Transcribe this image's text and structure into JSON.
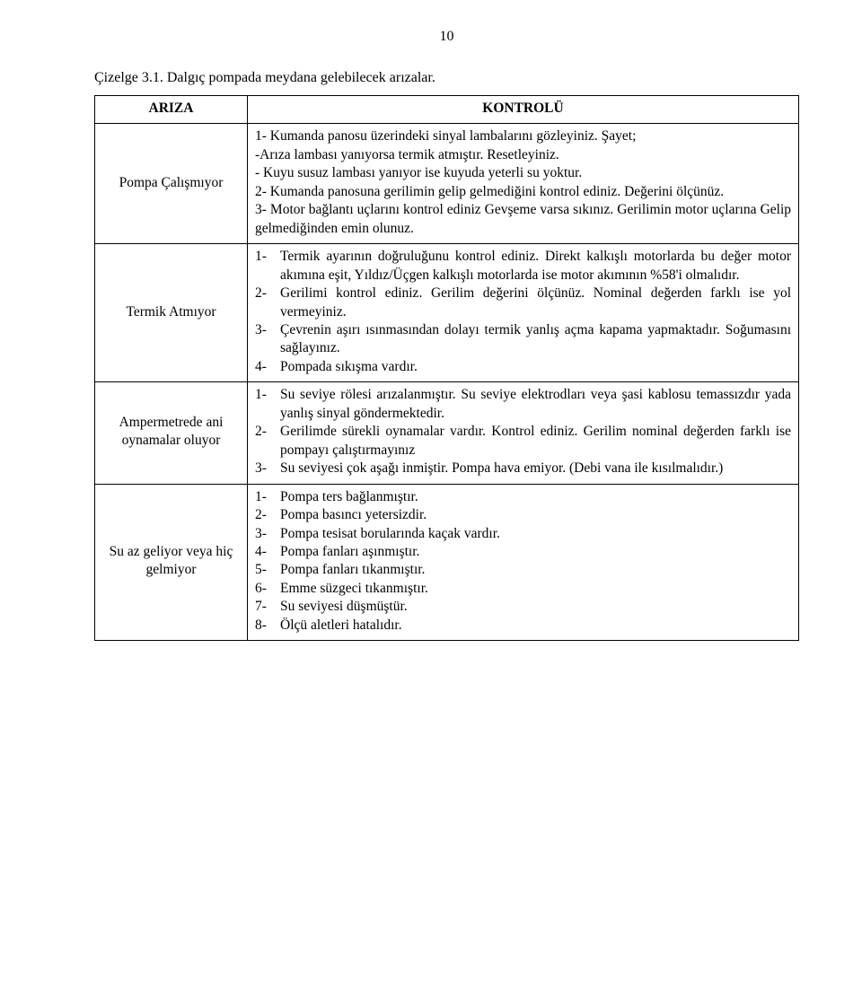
{
  "page_number": "10",
  "caption": "Çizelge 3.1. Dalgıç pompada meydana gelebilecek arızalar.",
  "headers": {
    "col1": "ARIZA",
    "col2": "KONTROLÜ"
  },
  "rows": [
    {
      "label": "Pompa Çalışmıyor",
      "text": "1- Kumanda panosu üzerindeki sinyal lambalarını gözleyiniz. Şayet;\n-Arıza lambası yanıyorsa termik atmıştır. Resetleyiniz.\n- Kuyu susuz lambası yanıyor ise kuyuda yeterli su yoktur.\n2- Kumanda panosuna gerilimin gelip gelmediğini kontrol ediniz. Değerini ölçünüz.\n3- Motor bağlantı uçlarını kontrol ediniz Gevşeme  varsa sıkınız. Gerilimin motor uçlarına Gelip gelmediğinden emin olunuz."
    },
    {
      "label": "Termik Atmıyor",
      "items": [
        "Termik ayarının doğruluğunu kontrol ediniz. Direkt kalkışlı motorlarda bu değer motor akımına eşit, Yıldız/Üçgen kalkışlı motorlarda ise motor akımının %58'i olmalıdır.",
        "Gerilimi kontrol ediniz. Gerilim değerini ölçünüz. Nominal değerden farklı ise yol vermeyiniz.",
        "Çevrenin aşırı ısınmasından  dolayı termik yanlış açma kapama yapmaktadır. Soğumasını sağlayınız.",
        "Pompada sıkışma vardır."
      ]
    },
    {
      "label": "Ampermetrede ani oynamalar oluyor",
      "items": [
        "Su seviye rölesi arızalanmıştır. Su seviye elektrodları veya şasi kablosu temassızdır yada yanlış sinyal göndermektedir.",
        "Gerilimde sürekli oynamalar vardır. Kontrol ediniz. Gerilim nominal değerden farklı ise pompayı çalıştırmayınız",
        "Su seviyesi çok aşağı inmiştir. Pompa hava emiyor. (Debi vana ile kısılmalıdır.)"
      ]
    },
    {
      "label": "Su az geliyor veya hiç gelmiyor",
      "items": [
        "Pompa ters bağlanmıştır.",
        "Pompa basıncı yetersizdir.",
        "Pompa tesisat borularında kaçak vardır.",
        "Pompa fanları aşınmıştır.",
        "Pompa fanları tıkanmıştır.",
        "Emme süzgeci tıkanmıştır.",
        "Su seviyesi düşmüştür.",
        "Ölçü aletleri hatalıdır."
      ]
    }
  ]
}
